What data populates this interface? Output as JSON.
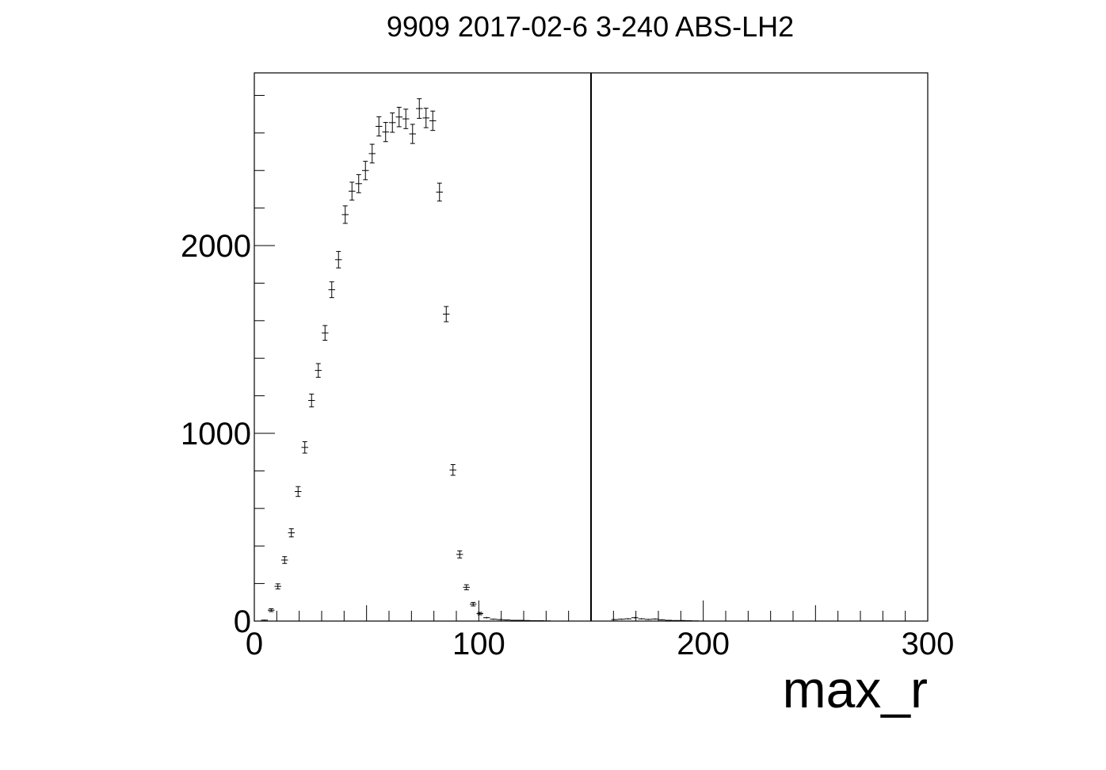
{
  "chart_data": {
    "type": "scatter",
    "title": "9909 2017-02-6 3-240 ABS-LH2",
    "xlabel": "max_r",
    "ylabel": "",
    "xlim": [
      0,
      300
    ],
    "ylim": [
      0,
      2920
    ],
    "x_ticks": [
      0,
      100,
      200,
      300
    ],
    "y_ticks": [
      0,
      1000,
      2000
    ],
    "x_tick_labels": [
      "0",
      "100",
      "200",
      "300"
    ],
    "y_tick_labels": [
      "0",
      "1000",
      "2000"
    ],
    "x_minor_step": 10,
    "y_minor_step": 200,
    "bin_width": 3,
    "grid": false,
    "legend": "none",
    "vertical_line_x": 150,
    "x": [
      4.5,
      7.5,
      10.5,
      13.5,
      16.5,
      19.5,
      22.5,
      25.5,
      28.5,
      31.5,
      34.5,
      37.5,
      40.5,
      43.5,
      46.5,
      49.5,
      52.5,
      55.5,
      58.5,
      61.5,
      64.5,
      67.5,
      70.5,
      73.5,
      76.5,
      79.5,
      82.5,
      85.5,
      88.5,
      91.5,
      94.5,
      97.5,
      100.5,
      103.5,
      106.5,
      109.5,
      112.5,
      115.5,
      118.5,
      121.5,
      124.5,
      127.5,
      130.5,
      160.5,
      163.5,
      166.5,
      169.5,
      172.5,
      175.5,
      178.5,
      181.5,
      184.5,
      187.5,
      190.5,
      193.5,
      196.5
    ],
    "y": [
      5,
      58,
      185,
      325,
      470,
      690,
      925,
      1175,
      1335,
      1535,
      1765,
      1925,
      2165,
      2290,
      2330,
      2400,
      2490,
      2635,
      2605,
      2655,
      2685,
      2675,
      2595,
      2730,
      2680,
      2665,
      2285,
      1635,
      805,
      355,
      180,
      90,
      40,
      18,
      10,
      8,
      6,
      4,
      4,
      3,
      2,
      2,
      1,
      8,
      10,
      12,
      18,
      12,
      9,
      11,
      7,
      4,
      3,
      3,
      2,
      1
    ]
  }
}
